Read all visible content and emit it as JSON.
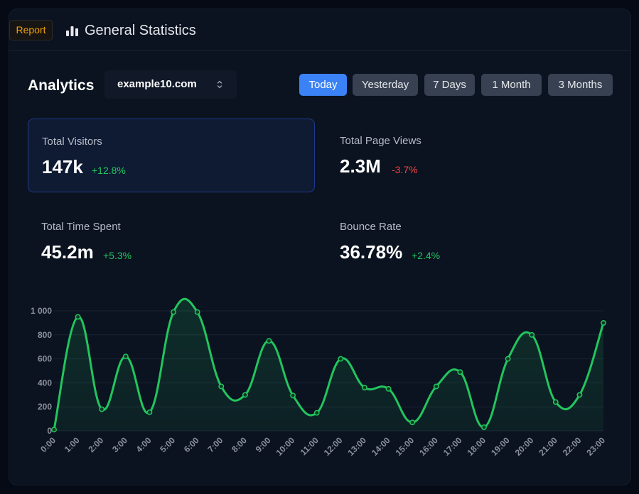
{
  "header": {
    "badge": "Report",
    "title": "General Statistics",
    "icon": "bar-chart-icon"
  },
  "analytics": {
    "title": "Analytics",
    "domain": "example10.com",
    "ranges": [
      {
        "label": "Today",
        "active": true
      },
      {
        "label": "Yesterday",
        "active": false
      },
      {
        "label": "7 Days",
        "active": false
      },
      {
        "label": "1 Month",
        "active": false
      },
      {
        "label": "3 Months",
        "active": false
      }
    ]
  },
  "stats": [
    {
      "label": "Total Visitors",
      "value": "147k",
      "change": "+12.8%",
      "trend": "up",
      "selected": true
    },
    {
      "label": "Total Page Views",
      "value": "2.3M",
      "change": "-3.7%",
      "trend": "down",
      "selected": false
    },
    {
      "label": "Total Time Spent",
      "value": "45.2m",
      "change": "+5.3%",
      "trend": "up",
      "selected": false
    },
    {
      "label": "Bounce Rate",
      "value": "36.78%",
      "change": "+2.4%",
      "trend": "up",
      "selected": false
    }
  ],
  "colors": {
    "accent": "#3b82f6",
    "positive": "#22c55e",
    "negative": "#ef4444",
    "badge": "#f59e0b"
  },
  "chart_data": {
    "type": "area",
    "x": [
      "0:00",
      "1:00",
      "2:00",
      "3:00",
      "4:00",
      "5:00",
      "6:00",
      "7:00",
      "8:00",
      "9:00",
      "10:00",
      "11:00",
      "12:00",
      "13:00",
      "14:00",
      "15:00",
      "16:00",
      "17:00",
      "18:00",
      "19:00",
      "20:00",
      "21:00",
      "22:00",
      "23:00"
    ],
    "series": [
      {
        "values": [
          10,
          950,
          180,
          620,
          155,
          990,
          990,
          370,
          300,
          750,
          295,
          150,
          600,
          360,
          350,
          70,
          370,
          490,
          30,
          600,
          800,
          240,
          300,
          900
        ]
      }
    ],
    "yticks": [
      "0",
      "200",
      "400",
      "600",
      "800",
      "1 000"
    ],
    "ylim": [
      0,
      1000
    ],
    "grid": true,
    "color": "#22c55e"
  }
}
